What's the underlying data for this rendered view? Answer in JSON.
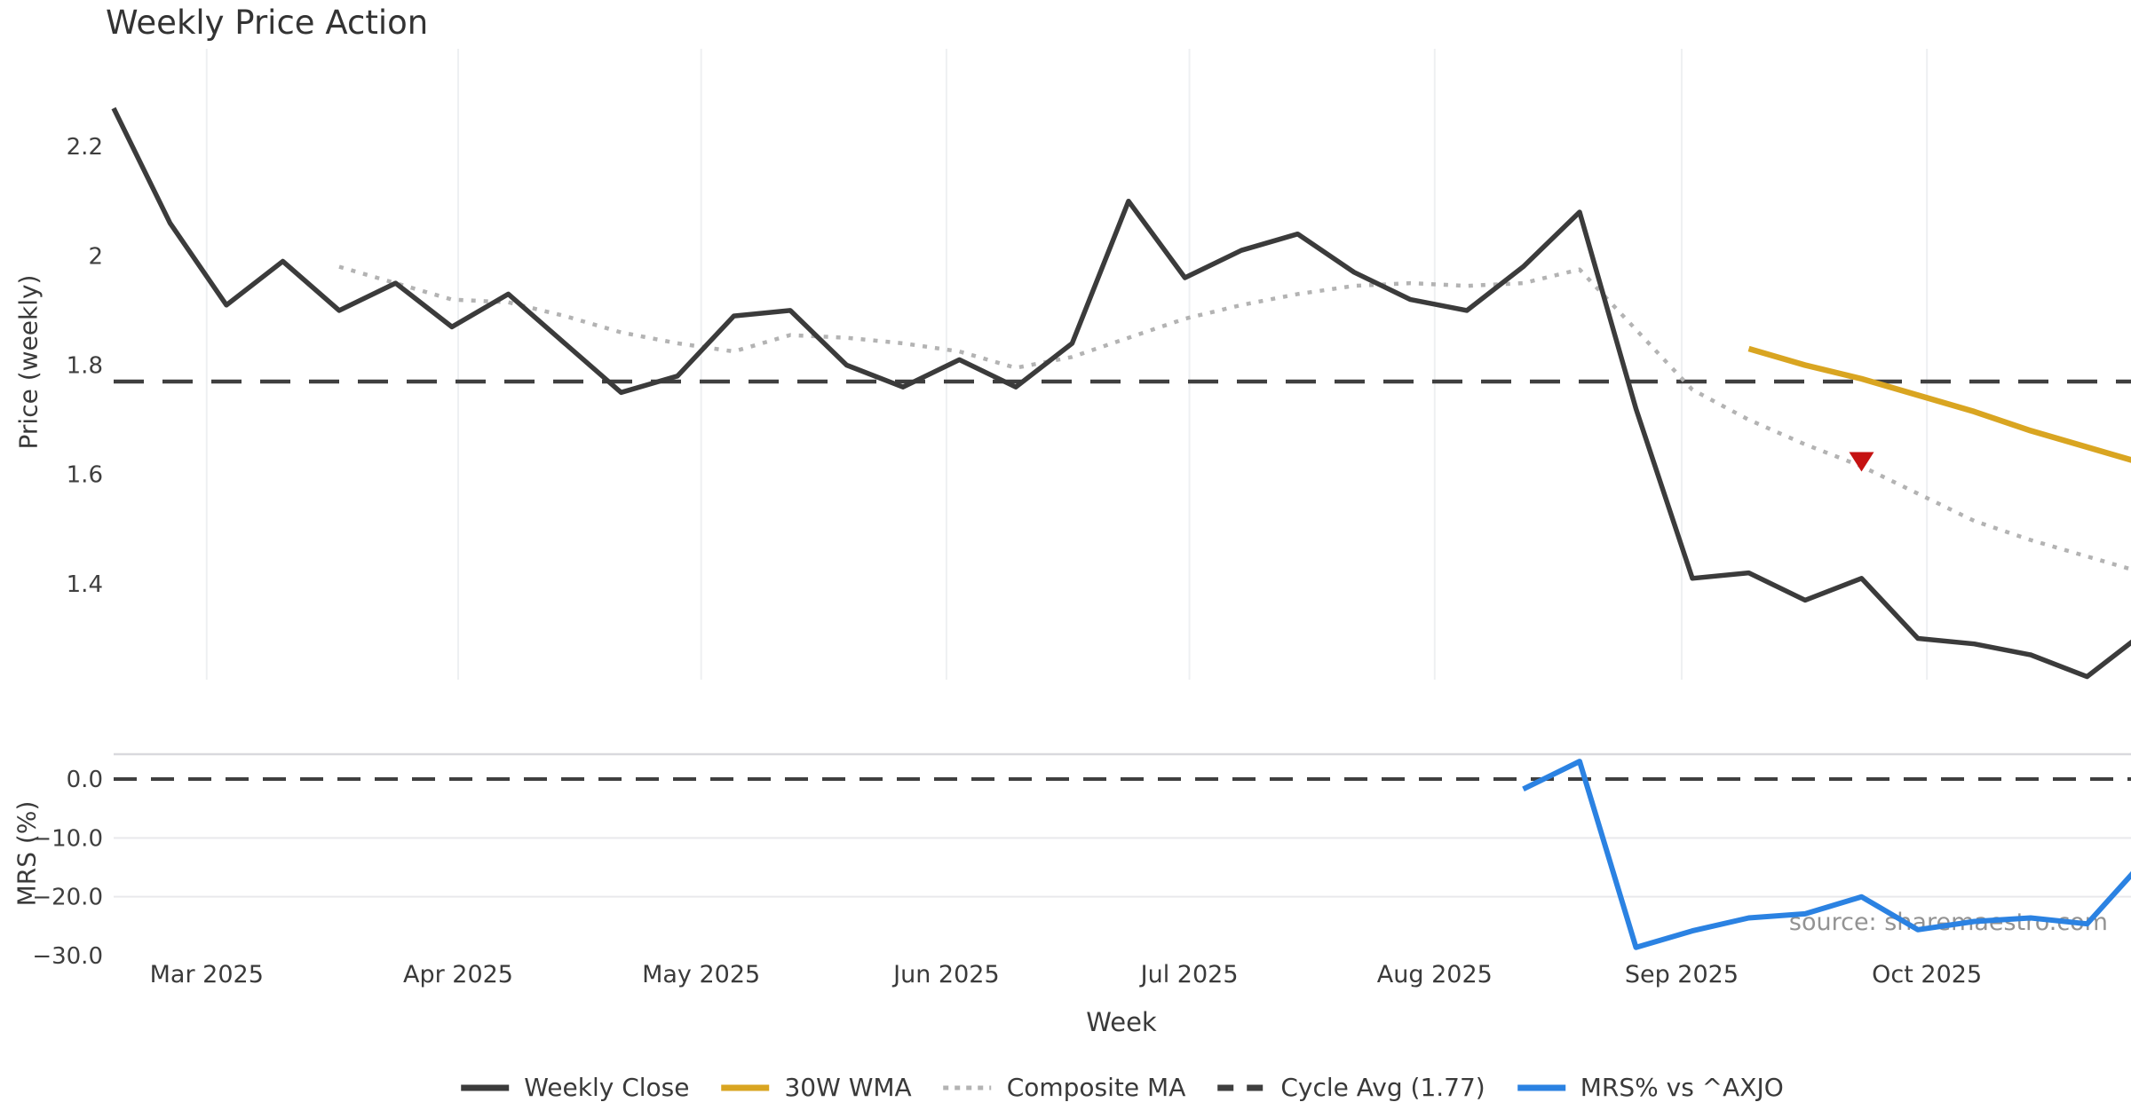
{
  "title": "Weekly Price Action",
  "xlabel": "Week",
  "source_note": "source: sharemaestro.com",
  "colors": {
    "weekly_close": "#3b3b3b",
    "composite_ma": "#b3b3b3",
    "wma_30w": "#d9a521",
    "cycle_avg": "#3f3f3f",
    "mrs": "#2b82e2",
    "marker_red": "#c51212",
    "gridline": "#eef0f2",
    "panel_border": "#d9d9dd",
    "tick_text": "#3f3f3f"
  },
  "legend": [
    {
      "id": "weekly-close",
      "label": "Weekly Close",
      "swatch": "solid",
      "color": "#3b3b3b"
    },
    {
      "id": "wma-30w",
      "label": "30W WMA",
      "swatch": "solid",
      "color": "#d9a521"
    },
    {
      "id": "composite-ma",
      "label": "Composite MA",
      "swatch": "dotted",
      "color": "#b3b3b3"
    },
    {
      "id": "cycle-avg",
      "label": "Cycle Avg (1.77)",
      "swatch": "dashed",
      "color": "#3f3f3f"
    },
    {
      "id": "mrs",
      "label": "MRS% vs ^AXJO",
      "swatch": "solid",
      "color": "#2b82e2"
    }
  ],
  "x_axis": {
    "label": "Week",
    "n_points": 37,
    "months": [
      {
        "label": "Mar 2025",
        "xi": 1.65
      },
      {
        "label": "Apr 2025",
        "xi": 6.11
      },
      {
        "label": "May 2025",
        "xi": 10.42
      },
      {
        "label": "Jun 2025",
        "xi": 14.77
      },
      {
        "label": "Jul 2025",
        "xi": 19.08
      },
      {
        "label": "Aug 2025",
        "xi": 23.43
      },
      {
        "label": "Sep 2025",
        "xi": 27.81
      },
      {
        "label": "Oct 2025",
        "xi": 32.16
      }
    ]
  },
  "chart_data": [
    {
      "type": "line",
      "panel": "price",
      "title": "Weekly Price Action",
      "ylabel": "Price (weekly)",
      "ylim": [
        1.23,
        2.38
      ],
      "grid": "vertical-months",
      "yticks": [
        {
          "v": 2.2,
          "label": "2.2"
        },
        {
          "v": 2.0,
          "label": "2"
        },
        {
          "v": 1.8,
          "label": "1.8"
        },
        {
          "v": 1.6,
          "label": "1.6"
        },
        {
          "v": 1.4,
          "label": "1.4"
        }
      ],
      "hline": {
        "value": 1.77,
        "style": "dashed",
        "legend": "Cycle Avg (1.77)"
      },
      "series": [
        {
          "name": "Weekly Close",
          "style": "solid",
          "color_key": "weekly_close",
          "values": [
            2.27,
            2.06,
            1.91,
            1.99,
            1.9,
            1.95,
            1.87,
            1.93,
            1.84,
            1.75,
            1.78,
            1.89,
            1.9,
            1.8,
            1.76,
            1.81,
            1.76,
            1.84,
            2.1,
            1.96,
            2.01,
            2.04,
            1.97,
            1.92,
            1.9,
            1.98,
            2.08,
            1.72,
            1.41,
            1.42,
            1.37,
            1.41,
            1.3,
            1.29,
            1.27,
            1.23,
            1.31
          ]
        },
        {
          "name": "Composite MA",
          "style": "dotted",
          "color_key": "composite_ma",
          "values": [
            null,
            null,
            null,
            null,
            1.98,
            1.95,
            1.92,
            1.915,
            1.89,
            1.86,
            1.84,
            1.825,
            1.855,
            1.85,
            1.84,
            1.825,
            1.795,
            1.815,
            1.85,
            1.885,
            1.91,
            1.93,
            1.945,
            1.95,
            1.945,
            1.95,
            1.975,
            1.865,
            1.755,
            1.7,
            1.655,
            1.615,
            1.565,
            1.515,
            1.48,
            1.45,
            1.42
          ]
        },
        {
          "name": "30W WMA",
          "style": "solid",
          "color_key": "wma_30w",
          "values": [
            null,
            null,
            null,
            null,
            null,
            null,
            null,
            null,
            null,
            null,
            null,
            null,
            null,
            null,
            null,
            null,
            null,
            null,
            null,
            null,
            null,
            null,
            null,
            null,
            null,
            null,
            null,
            null,
            null,
            1.83,
            1.8,
            1.775,
            1.745,
            1.715,
            1.68,
            1.65,
            1.62
          ]
        }
      ],
      "marker": {
        "shape": "triangle-down",
        "color_key": "marker_red",
        "week_index": 31,
        "value": 1.615
      }
    },
    {
      "type": "line",
      "panel": "mrs",
      "ylabel": "MRS (%)",
      "ylim": [
        -31,
        4
      ],
      "gridlines_y": [
        -10,
        -20
      ],
      "yticks": [
        {
          "v": 0,
          "label": "0.0"
        },
        {
          "v": -10,
          "label": "−10.0"
        },
        {
          "v": -20,
          "label": "−20.0"
        },
        {
          "v": -30,
          "label": "−30.0"
        }
      ],
      "hline": {
        "value": 0,
        "style": "dashed"
      },
      "series": [
        {
          "name": "MRS% vs ^AXJO",
          "style": "solid",
          "color_key": "mrs",
          "values": [
            null,
            null,
            null,
            null,
            null,
            null,
            null,
            null,
            null,
            null,
            null,
            null,
            null,
            null,
            null,
            null,
            null,
            null,
            null,
            null,
            null,
            null,
            null,
            null,
            null,
            -1.7,
            3.0,
            -28.6,
            -25.8,
            -23.6,
            -22.9,
            -20.0,
            -25.6,
            -24.2,
            -23.6,
            -24.6,
            -14.0
          ]
        }
      ]
    }
  ]
}
